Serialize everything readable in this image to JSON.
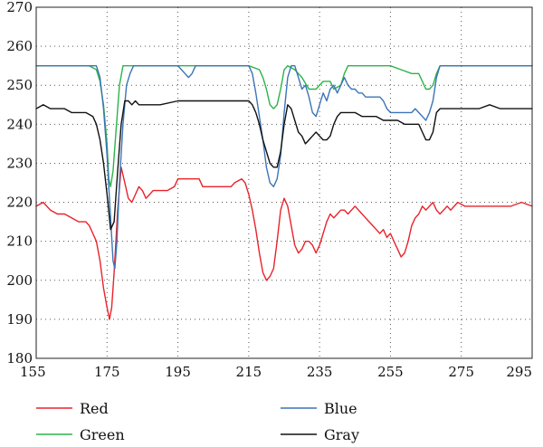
{
  "chart_data": {
    "type": "line",
    "xlim": [
      155,
      295
    ],
    "ylim": [
      180,
      270
    ],
    "xticks": [
      155,
      175,
      195,
      215,
      235,
      255,
      275,
      295
    ],
    "yticks": [
      180,
      190,
      200,
      210,
      220,
      230,
      240,
      250,
      260,
      270
    ],
    "grid": "dotted",
    "legend_position": "bottom",
    "series": [
      {
        "name": "Red",
        "color": "#e8232a",
        "points": [
          [
            155,
            219
          ],
          [
            157,
            220
          ],
          [
            159,
            218
          ],
          [
            161,
            217
          ],
          [
            163,
            217
          ],
          [
            165,
            216
          ],
          [
            167,
            215
          ],
          [
            169,
            215
          ],
          [
            170,
            214
          ],
          [
            171,
            212
          ],
          [
            172,
            210
          ],
          [
            173,
            205
          ],
          [
            174,
            198
          ],
          [
            175,
            193
          ],
          [
            175.7,
            190
          ],
          [
            176.3,
            193
          ],
          [
            177,
            202
          ],
          [
            178,
            218
          ],
          [
            179,
            229
          ],
          [
            180,
            225
          ],
          [
            181,
            221
          ],
          [
            182,
            220
          ],
          [
            183,
            222
          ],
          [
            184,
            224
          ],
          [
            185,
            223
          ],
          [
            186,
            221
          ],
          [
            187,
            222
          ],
          [
            188,
            223
          ],
          [
            190,
            223
          ],
          [
            192,
            223
          ],
          [
            194,
            224
          ],
          [
            195,
            226
          ],
          [
            197,
            226
          ],
          [
            199,
            226
          ],
          [
            201,
            226
          ],
          [
            202,
            224
          ],
          [
            204,
            224
          ],
          [
            206,
            224
          ],
          [
            208,
            224
          ],
          [
            210,
            224
          ],
          [
            211,
            225
          ],
          [
            213,
            226
          ],
          [
            214,
            225
          ],
          [
            215,
            222
          ],
          [
            216,
            218
          ],
          [
            217,
            213
          ],
          [
            218,
            207
          ],
          [
            219,
            202
          ],
          [
            220,
            200
          ],
          [
            221,
            201
          ],
          [
            222,
            203
          ],
          [
            223,
            210
          ],
          [
            224,
            218
          ],
          [
            225,
            221
          ],
          [
            226,
            219
          ],
          [
            227,
            214
          ],
          [
            228,
            209
          ],
          [
            229,
            207
          ],
          [
            230,
            208
          ],
          [
            231,
            210
          ],
          [
            232,
            210
          ],
          [
            233,
            209
          ],
          [
            234,
            207
          ],
          [
            235,
            209
          ],
          [
            236,
            212
          ],
          [
            237,
            215
          ],
          [
            238,
            217
          ],
          [
            239,
            216
          ],
          [
            240,
            217
          ],
          [
            241,
            218
          ],
          [
            242,
            218
          ],
          [
            243,
            217
          ],
          [
            244,
            218
          ],
          [
            245,
            219
          ],
          [
            246,
            218
          ],
          [
            247,
            217
          ],
          [
            248,
            216
          ],
          [
            249,
            215
          ],
          [
            250,
            214
          ],
          [
            251,
            213
          ],
          [
            252,
            212
          ],
          [
            253,
            213
          ],
          [
            254,
            211
          ],
          [
            255,
            212
          ],
          [
            256,
            210
          ],
          [
            257,
            208
          ],
          [
            258,
            206
          ],
          [
            259,
            207
          ],
          [
            260,
            210
          ],
          [
            261,
            214
          ],
          [
            262,
            216
          ],
          [
            263,
            217
          ],
          [
            264,
            219
          ],
          [
            265,
            218
          ],
          [
            266,
            219
          ],
          [
            267,
            220
          ],
          [
            268,
            218
          ],
          [
            269,
            217
          ],
          [
            270,
            218
          ],
          [
            271,
            219
          ],
          [
            272,
            218
          ],
          [
            273,
            219
          ],
          [
            274,
            220
          ],
          [
            276,
            219
          ],
          [
            278,
            219
          ],
          [
            280,
            219
          ],
          [
            283,
            219
          ],
          [
            286,
            219
          ],
          [
            289,
            219
          ],
          [
            292,
            220
          ],
          [
            295,
            219
          ]
        ]
      },
      {
        "name": "Green",
        "color": "#2cb34a",
        "points": [
          [
            155,
            255
          ],
          [
            160,
            255
          ],
          [
            165,
            255
          ],
          [
            170,
            255
          ],
          [
            172,
            254
          ],
          [
            173,
            251
          ],
          [
            174,
            245
          ],
          [
            175,
            235
          ],
          [
            175.5,
            226
          ],
          [
            176,
            224
          ],
          [
            176.7,
            228
          ],
          [
            177.5,
            238
          ],
          [
            178.5,
            250
          ],
          [
            179.5,
            255
          ],
          [
            185,
            255
          ],
          [
            195,
            255
          ],
          [
            205,
            255
          ],
          [
            215,
            255
          ],
          [
            218,
            254
          ],
          [
            219,
            252
          ],
          [
            220,
            249
          ],
          [
            221,
            245
          ],
          [
            222,
            244
          ],
          [
            223,
            245
          ],
          [
            224,
            249
          ],
          [
            225,
            254
          ],
          [
            226,
            255
          ],
          [
            228,
            254
          ],
          [
            230,
            252
          ],
          [
            232,
            249
          ],
          [
            234,
            249
          ],
          [
            236,
            251
          ],
          [
            238,
            251
          ],
          [
            239,
            249
          ],
          [
            241,
            250
          ],
          [
            242,
            253
          ],
          [
            243,
            255
          ],
          [
            250,
            255
          ],
          [
            255,
            255
          ],
          [
            258,
            254
          ],
          [
            261,
            253
          ],
          [
            263,
            253
          ],
          [
            264,
            251
          ],
          [
            265,
            249
          ],
          [
            266,
            249
          ],
          [
            267,
            250
          ],
          [
            268,
            253
          ],
          [
            269,
            255
          ],
          [
            275,
            255
          ],
          [
            285,
            255
          ],
          [
            295,
            255
          ]
        ]
      },
      {
        "name": "Blue",
        "color": "#3b74b8",
        "points": [
          [
            155,
            255
          ],
          [
            160,
            255
          ],
          [
            165,
            255
          ],
          [
            170,
            255
          ],
          [
            172,
            255
          ],
          [
            173,
            252
          ],
          [
            174,
            244
          ],
          [
            175,
            232
          ],
          [
            175.5,
            224
          ],
          [
            176,
            216
          ],
          [
            176.7,
            205
          ],
          [
            177.2,
            203
          ],
          [
            177.8,
            210
          ],
          [
            178.5,
            225
          ],
          [
            179.5,
            240
          ],
          [
            180.5,
            250
          ],
          [
            181.5,
            253
          ],
          [
            182.5,
            255
          ],
          [
            190,
            255
          ],
          [
            195,
            255
          ],
          [
            196,
            254
          ],
          [
            197,
            253
          ],
          [
            198,
            252
          ],
          [
            199,
            253
          ],
          [
            200,
            255
          ],
          [
            205,
            255
          ],
          [
            210,
            255
          ],
          [
            215,
            255
          ],
          [
            216,
            253
          ],
          [
            217,
            248
          ],
          [
            218,
            242
          ],
          [
            219,
            236
          ],
          [
            220,
            229
          ],
          [
            221,
            225
          ],
          [
            222,
            224
          ],
          [
            223,
            226
          ],
          [
            224,
            232
          ],
          [
            225,
            243
          ],
          [
            226,
            252
          ],
          [
            227,
            255
          ],
          [
            228,
            255
          ],
          [
            229,
            252
          ],
          [
            230,
            249
          ],
          [
            231,
            250
          ],
          [
            232,
            247
          ],
          [
            233,
            243
          ],
          [
            234,
            242
          ],
          [
            235,
            245
          ],
          [
            236,
            248
          ],
          [
            237,
            246
          ],
          [
            238,
            249
          ],
          [
            239,
            250
          ],
          [
            240,
            248
          ],
          [
            241,
            250
          ],
          [
            242,
            252
          ],
          [
            243,
            250
          ],
          [
            244,
            249
          ],
          [
            245,
            249
          ],
          [
            246,
            248
          ],
          [
            247,
            248
          ],
          [
            248,
            247
          ],
          [
            250,
            247
          ],
          [
            252,
            247
          ],
          [
            253,
            246
          ],
          [
            254,
            244
          ],
          [
            255,
            243
          ],
          [
            257,
            243
          ],
          [
            259,
            243
          ],
          [
            261,
            243
          ],
          [
            262,
            244
          ],
          [
            263,
            243
          ],
          [
            264,
            242
          ],
          [
            265,
            241
          ],
          [
            266,
            243
          ],
          [
            267,
            246
          ],
          [
            268,
            252
          ],
          [
            269,
            255
          ],
          [
            275,
            255
          ],
          [
            285,
            255
          ],
          [
            295,
            255
          ]
        ]
      },
      {
        "name": "Gray",
        "color": "#111111",
        "points": [
          [
            155,
            244
          ],
          [
            157,
            245
          ],
          [
            159,
            244
          ],
          [
            161,
            244
          ],
          [
            163,
            244
          ],
          [
            165,
            243
          ],
          [
            167,
            243
          ],
          [
            169,
            243
          ],
          [
            171,
            242
          ],
          [
            172,
            240
          ],
          [
            173,
            236
          ],
          [
            174,
            230
          ],
          [
            175,
            222
          ],
          [
            176,
            213
          ],
          [
            177,
            215
          ],
          [
            178,
            228
          ],
          [
            179,
            240
          ],
          [
            180,
            246
          ],
          [
            181,
            246
          ],
          [
            182,
            245
          ],
          [
            183,
            246
          ],
          [
            184,
            245
          ],
          [
            185,
            245
          ],
          [
            187,
            245
          ],
          [
            190,
            245
          ],
          [
            195,
            246
          ],
          [
            200,
            246
          ],
          [
            205,
            246
          ],
          [
            210,
            246
          ],
          [
            215,
            246
          ],
          [
            216,
            245
          ],
          [
            217,
            243
          ],
          [
            218,
            240
          ],
          [
            219,
            236
          ],
          [
            220,
            233
          ],
          [
            221,
            230
          ],
          [
            222,
            229
          ],
          [
            223,
            229
          ],
          [
            224,
            233
          ],
          [
            225,
            240
          ],
          [
            226,
            245
          ],
          [
            227,
            244
          ],
          [
            228,
            241
          ],
          [
            229,
            238
          ],
          [
            230,
            237
          ],
          [
            231,
            235
          ],
          [
            232,
            236
          ],
          [
            233,
            237
          ],
          [
            234,
            238
          ],
          [
            235,
            237
          ],
          [
            236,
            236
          ],
          [
            237,
            236
          ],
          [
            238,
            237
          ],
          [
            239,
            240
          ],
          [
            240,
            242
          ],
          [
            241,
            243
          ],
          [
            243,
            243
          ],
          [
            245,
            243
          ],
          [
            247,
            242
          ],
          [
            249,
            242
          ],
          [
            251,
            242
          ],
          [
            253,
            241
          ],
          [
            255,
            241
          ],
          [
            257,
            241
          ],
          [
            259,
            240
          ],
          [
            261,
            240
          ],
          [
            263,
            240
          ],
          [
            264,
            238
          ],
          [
            265,
            236
          ],
          [
            266,
            236
          ],
          [
            267,
            238
          ],
          [
            268,
            243
          ],
          [
            269,
            244
          ],
          [
            275,
            244
          ],
          [
            280,
            244
          ],
          [
            283,
            245
          ],
          [
            286,
            244
          ],
          [
            290,
            244
          ],
          [
            295,
            244
          ]
        ]
      }
    ]
  }
}
